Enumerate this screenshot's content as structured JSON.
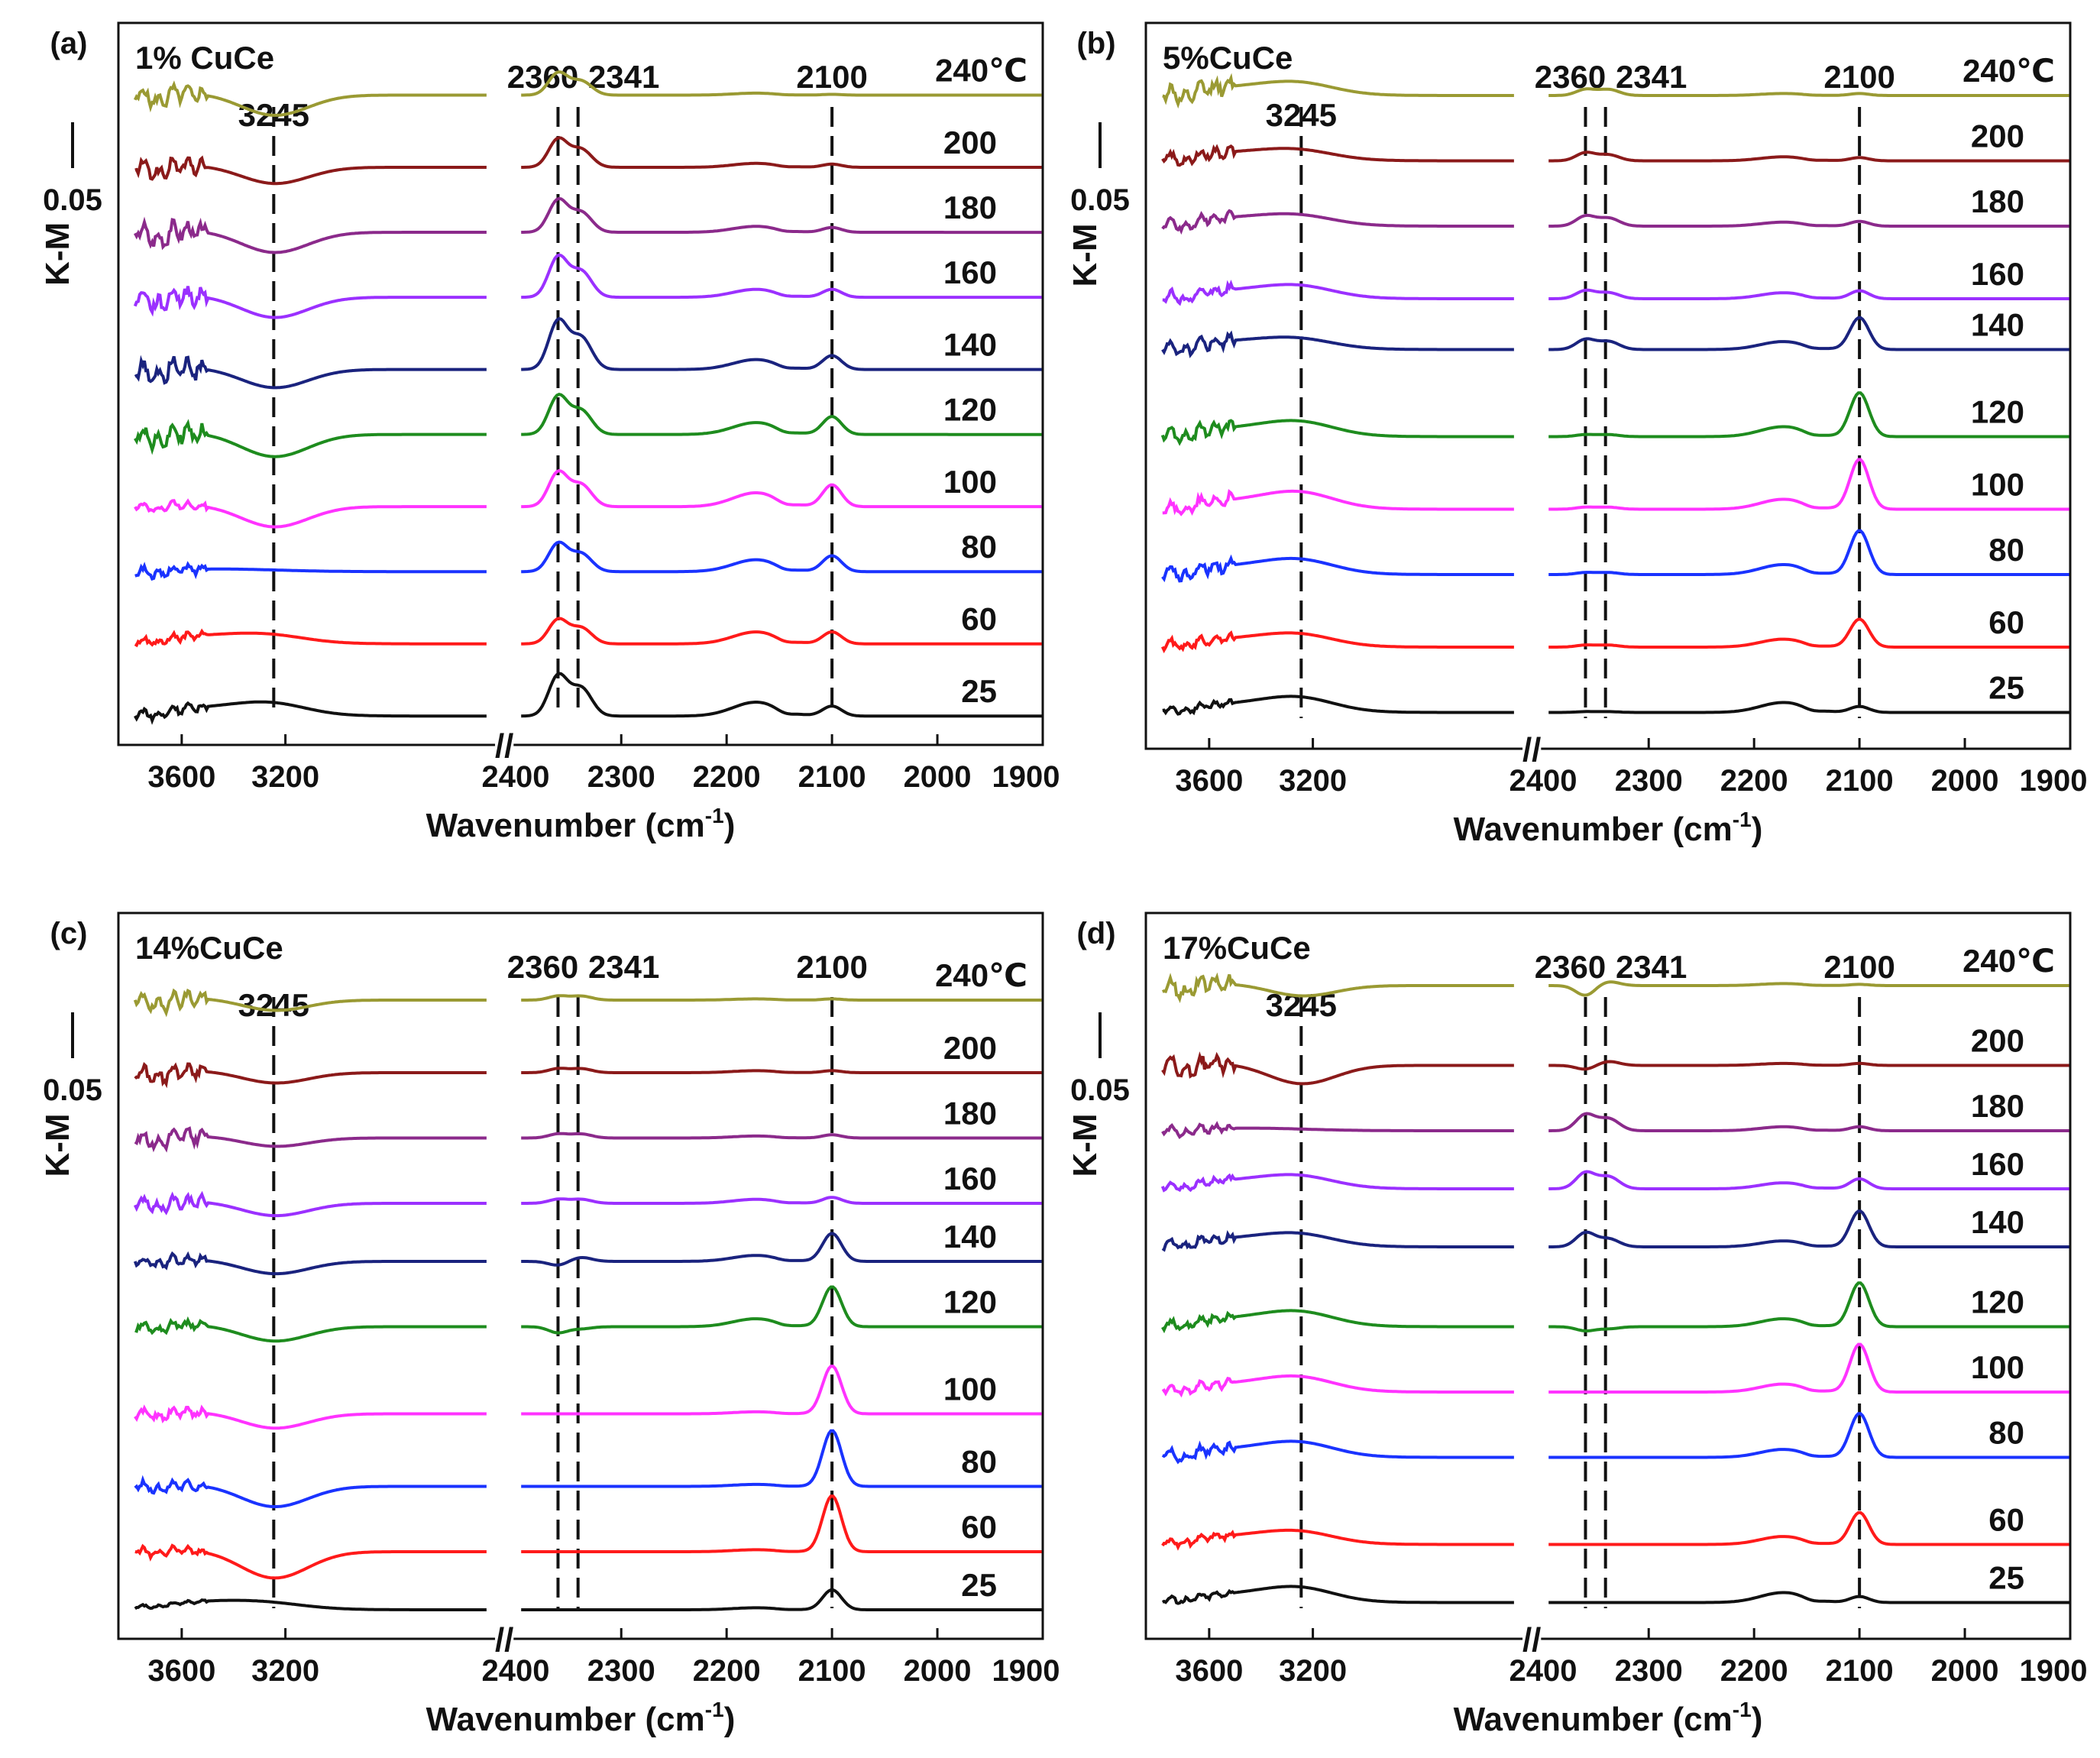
{
  "figure": {
    "xlabel": "Wavenumber (cm",
    "xlabel_sup": "-1",
    "xlabel_close": ")",
    "ylabel": "K-M",
    "scale_bar_label": "0.05",
    "axis_break_symbol": "//",
    "left_ticks": [
      "3600",
      "3200",
      "2400"
    ],
    "right_ticks": [
      "2300",
      "2200",
      "2100",
      "2000",
      "1900"
    ],
    "temperatures": [
      "240℃",
      "200",
      "180",
      "160",
      "140",
      "120",
      "100",
      "80",
      "60",
      "25"
    ],
    "series_colors": [
      "#9a9a33",
      "#8b1a1a",
      "#8b2a8b",
      "#9b30ff",
      "#1a237e",
      "#1e8c1e",
      "#ff33ff",
      "#1a33ff",
      "#ff1a1a",
      "#111111"
    ]
  },
  "chart_data": [
    {
      "type": "line",
      "panel": "(a)",
      "title": "1% CuCe",
      "x_left_range": [
        3800,
        2400
      ],
      "x_right_range": [
        2400,
        1900
      ],
      "peak_labels": [
        "3245",
        "2360",
        "2341",
        "2100"
      ],
      "markers": [
        3245,
        2360,
        2341,
        2100
      ],
      "series": [
        {
          "name": "240℃",
          "offset": 0.9,
          "a3245": -0.55,
          "a2360": 0.55,
          "a2341": 0.35,
          "a2100": 0.02,
          "a2170": 0.05,
          "noise": 1.0
        },
        {
          "name": "200",
          "offset": 0.8,
          "a3245": -0.45,
          "a2360": 0.7,
          "a2341": 0.45,
          "a2100": 0.08,
          "a2170": 0.1,
          "noise": 1.0
        },
        {
          "name": "180",
          "offset": 0.71,
          "a3245": -0.55,
          "a2360": 0.8,
          "a2341": 0.5,
          "a2100": 0.12,
          "a2170": 0.15,
          "noise": 1.2
        },
        {
          "name": "160",
          "offset": 0.62,
          "a3245": -0.55,
          "a2360": 1.0,
          "a2341": 0.65,
          "a2100": 0.2,
          "a2170": 0.2,
          "noise": 1.2
        },
        {
          "name": "140",
          "offset": 0.52,
          "a3245": -0.5,
          "a2360": 1.2,
          "a2341": 0.8,
          "a2100": 0.35,
          "a2170": 0.25,
          "noise": 1.3
        },
        {
          "name": "120",
          "offset": 0.43,
          "a3245": -0.6,
          "a2360": 0.95,
          "a2341": 0.6,
          "a2100": 0.45,
          "a2170": 0.3,
          "noise": 1.2
        },
        {
          "name": "100",
          "offset": 0.33,
          "a3245": -0.55,
          "a2360": 0.85,
          "a2341": 0.55,
          "a2100": 0.55,
          "a2170": 0.35,
          "noise": 0.5
        },
        {
          "name": "80",
          "offset": 0.24,
          "a3245": 0.0,
          "a2360": 0.7,
          "a2341": 0.45,
          "a2100": 0.4,
          "a2170": 0.3,
          "noise": 0.6
        },
        {
          "name": "60",
          "offset": 0.14,
          "a3245": 0.1,
          "a2360": 0.6,
          "a2341": 0.4,
          "a2100": 0.3,
          "a2170": 0.3,
          "noise": 0.5
        },
        {
          "name": "25",
          "offset": 0.04,
          "a3245": 0.2,
          "a2360": 1.0,
          "a2341": 0.7,
          "a2100": 0.25,
          "a2170": 0.35,
          "noise": 0.6
        }
      ]
    },
    {
      "type": "line",
      "panel": "(b)",
      "title": "5%CuCe",
      "x_left_range": [
        3800,
        2400
      ],
      "x_right_range": [
        2400,
        1900
      ],
      "peak_labels": [
        "3245",
        "2360",
        "2341",
        "2100"
      ],
      "markers": [
        3245,
        2360,
        2341,
        2100
      ],
      "series": [
        {
          "name": "240℃",
          "offset": 0.9,
          "a3245": 0.2,
          "a2360": 0.15,
          "a2341": 0.15,
          "a2100": 0.05,
          "a2170": 0.05,
          "noise": 1.0
        },
        {
          "name": "200",
          "offset": 0.81,
          "a3245": 0.15,
          "a2360": 0.2,
          "a2341": 0.15,
          "a2100": 0.08,
          "a2170": 0.1,
          "noise": 0.7
        },
        {
          "name": "180",
          "offset": 0.72,
          "a3245": 0.15,
          "a2360": 0.25,
          "a2341": 0.2,
          "a2100": 0.12,
          "a2170": 0.1,
          "noise": 0.7
        },
        {
          "name": "160",
          "offset": 0.62,
          "a3245": 0.2,
          "a2360": 0.2,
          "a2341": 0.15,
          "a2100": 0.2,
          "a2170": 0.15,
          "noise": 0.7
        },
        {
          "name": "140",
          "offset": 0.55,
          "a3245": 0.15,
          "a2360": 0.25,
          "a2341": 0.2,
          "a2100": 0.8,
          "a2170": 0.2,
          "noise": 0.8
        },
        {
          "name": "120",
          "offset": 0.43,
          "a3245": 0.25,
          "a2360": 0.05,
          "a2341": 0.05,
          "a2100": 1.1,
          "a2170": 0.25,
          "noise": 0.8
        },
        {
          "name": "100",
          "offset": 0.33,
          "a3245": 0.3,
          "a2360": 0.05,
          "a2341": 0.05,
          "a2100": 1.25,
          "a2170": 0.25,
          "noise": 0.8
        },
        {
          "name": "80",
          "offset": 0.24,
          "a3245": 0.25,
          "a2360": 0.05,
          "a2341": 0.05,
          "a2100": 1.1,
          "a2170": 0.25,
          "noise": 0.8
        },
        {
          "name": "60",
          "offset": 0.14,
          "a3245": 0.2,
          "a2360": 0.05,
          "a2341": 0.05,
          "a2100": 0.7,
          "a2170": 0.2,
          "noise": 0.6
        },
        {
          "name": "25",
          "offset": 0.05,
          "a3245": 0.25,
          "a2360": 0.02,
          "a2341": 0.02,
          "a2100": 0.15,
          "a2170": 0.25,
          "noise": 0.4
        }
      ]
    },
    {
      "type": "line",
      "panel": "(c)",
      "title": "14%CuCe",
      "x_left_range": [
        3800,
        2400
      ],
      "x_right_range": [
        2400,
        1900
      ],
      "peak_labels": [
        "3245",
        "2360",
        "2341",
        "2100"
      ],
      "markers": [
        3245,
        2360,
        2341,
        2100
      ],
      "series": [
        {
          "name": "240℃",
          "offset": 0.88,
          "a3245": -0.3,
          "a2360": 0.1,
          "a2341": 0.1,
          "a2100": 0.03,
          "a2170": 0.03,
          "noise": 1.0
        },
        {
          "name": "200",
          "offset": 0.78,
          "a3245": -0.3,
          "a2360": 0.1,
          "a2341": 0.1,
          "a2100": 0.05,
          "a2170": 0.05,
          "noise": 0.9
        },
        {
          "name": "180",
          "offset": 0.69,
          "a3245": -0.25,
          "a2360": 0.1,
          "a2341": 0.1,
          "a2100": 0.08,
          "a2170": 0.05,
          "noise": 0.9
        },
        {
          "name": "160",
          "offset": 0.6,
          "a3245": -0.35,
          "a2360": 0.1,
          "a2341": 0.1,
          "a2100": 0.15,
          "a2170": 0.1,
          "noise": 0.8
        },
        {
          "name": "140",
          "offset": 0.52,
          "a3245": -0.35,
          "a2360": -0.1,
          "a2341": 0.1,
          "a2100": 0.7,
          "a2170": 0.15,
          "noise": 0.6
        },
        {
          "name": "120",
          "offset": 0.43,
          "a3245": -0.4,
          "a2360": -0.15,
          "a2341": -0.05,
          "a2100": 1.0,
          "a2170": 0.2,
          "noise": 0.6
        },
        {
          "name": "100",
          "offset": 0.31,
          "a3245": -0.4,
          "a2360": 0.0,
          "a2341": 0.0,
          "a2100": 1.2,
          "a2170": 0.05,
          "noise": 0.6
        },
        {
          "name": "80",
          "offset": 0.21,
          "a3245": -0.55,
          "a2360": 0.0,
          "a2341": 0.0,
          "a2100": 1.4,
          "a2170": 0.05,
          "noise": 0.6
        },
        {
          "name": "60",
          "offset": 0.12,
          "a3245": -0.7,
          "a2360": 0.0,
          "a2341": 0.0,
          "a2100": 1.4,
          "a2170": 0.05,
          "noise": 0.5
        },
        {
          "name": "25",
          "offset": 0.04,
          "a3245": 0.05,
          "a2360": 0.0,
          "a2341": 0.0,
          "a2100": 0.5,
          "a2170": 0.05,
          "noise": 0.2
        }
      ]
    },
    {
      "type": "line",
      "panel": "(d)",
      "title": "17%CuCe",
      "x_left_range": [
        3800,
        2400
      ],
      "x_right_range": [
        2400,
        1900
      ],
      "peak_labels": [
        "3245",
        "2360",
        "2341",
        "2100"
      ],
      "markers": [
        3245,
        2360,
        2341,
        2100
      ],
      "series": [
        {
          "name": "240℃",
          "offset": 0.9,
          "a3245": -0.3,
          "a2360": -0.25,
          "a2341": 0.1,
          "a2100": 0.03,
          "a2170": 0.05,
          "noise": 1.0
        },
        {
          "name": "200",
          "offset": 0.79,
          "a3245": -0.5,
          "a2360": -0.1,
          "a2341": 0.1,
          "a2100": 0.05,
          "a2170": 0.05,
          "noise": 1.1
        },
        {
          "name": "180",
          "offset": 0.7,
          "a3245": 0.0,
          "a2360": 0.4,
          "a2341": 0.3,
          "a2100": 0.1,
          "a2170": 0.1,
          "noise": 0.5
        },
        {
          "name": "160",
          "offset": 0.62,
          "a3245": 0.2,
          "a2360": 0.4,
          "a2341": 0.3,
          "a2100": 0.25,
          "a2170": 0.15,
          "noise": 0.5
        },
        {
          "name": "140",
          "offset": 0.54,
          "a3245": 0.2,
          "a2360": 0.35,
          "a2341": 0.2,
          "a2100": 0.9,
          "a2170": 0.15,
          "noise": 0.6
        },
        {
          "name": "120",
          "offset": 0.43,
          "a3245": 0.25,
          "a2360": -0.1,
          "a2341": -0.05,
          "a2100": 1.1,
          "a2170": 0.2,
          "noise": 0.6
        },
        {
          "name": "100",
          "offset": 0.34,
          "a3245": 0.25,
          "a2360": 0.0,
          "a2341": 0.0,
          "a2100": 1.2,
          "a2170": 0.2,
          "noise": 0.6
        },
        {
          "name": "80",
          "offset": 0.25,
          "a3245": 0.25,
          "a2360": 0.0,
          "a2341": 0.0,
          "a2100": 1.1,
          "a2170": 0.2,
          "noise": 0.6
        },
        {
          "name": "60",
          "offset": 0.13,
          "a3245": 0.2,
          "a2360": 0.0,
          "a2341": 0.0,
          "a2100": 0.8,
          "a2170": 0.2,
          "noise": 0.5
        },
        {
          "name": "25",
          "offset": 0.05,
          "a3245": 0.25,
          "a2360": 0.0,
          "a2341": 0.0,
          "a2100": 0.15,
          "a2170": 0.25,
          "noise": 0.4
        }
      ]
    }
  ]
}
